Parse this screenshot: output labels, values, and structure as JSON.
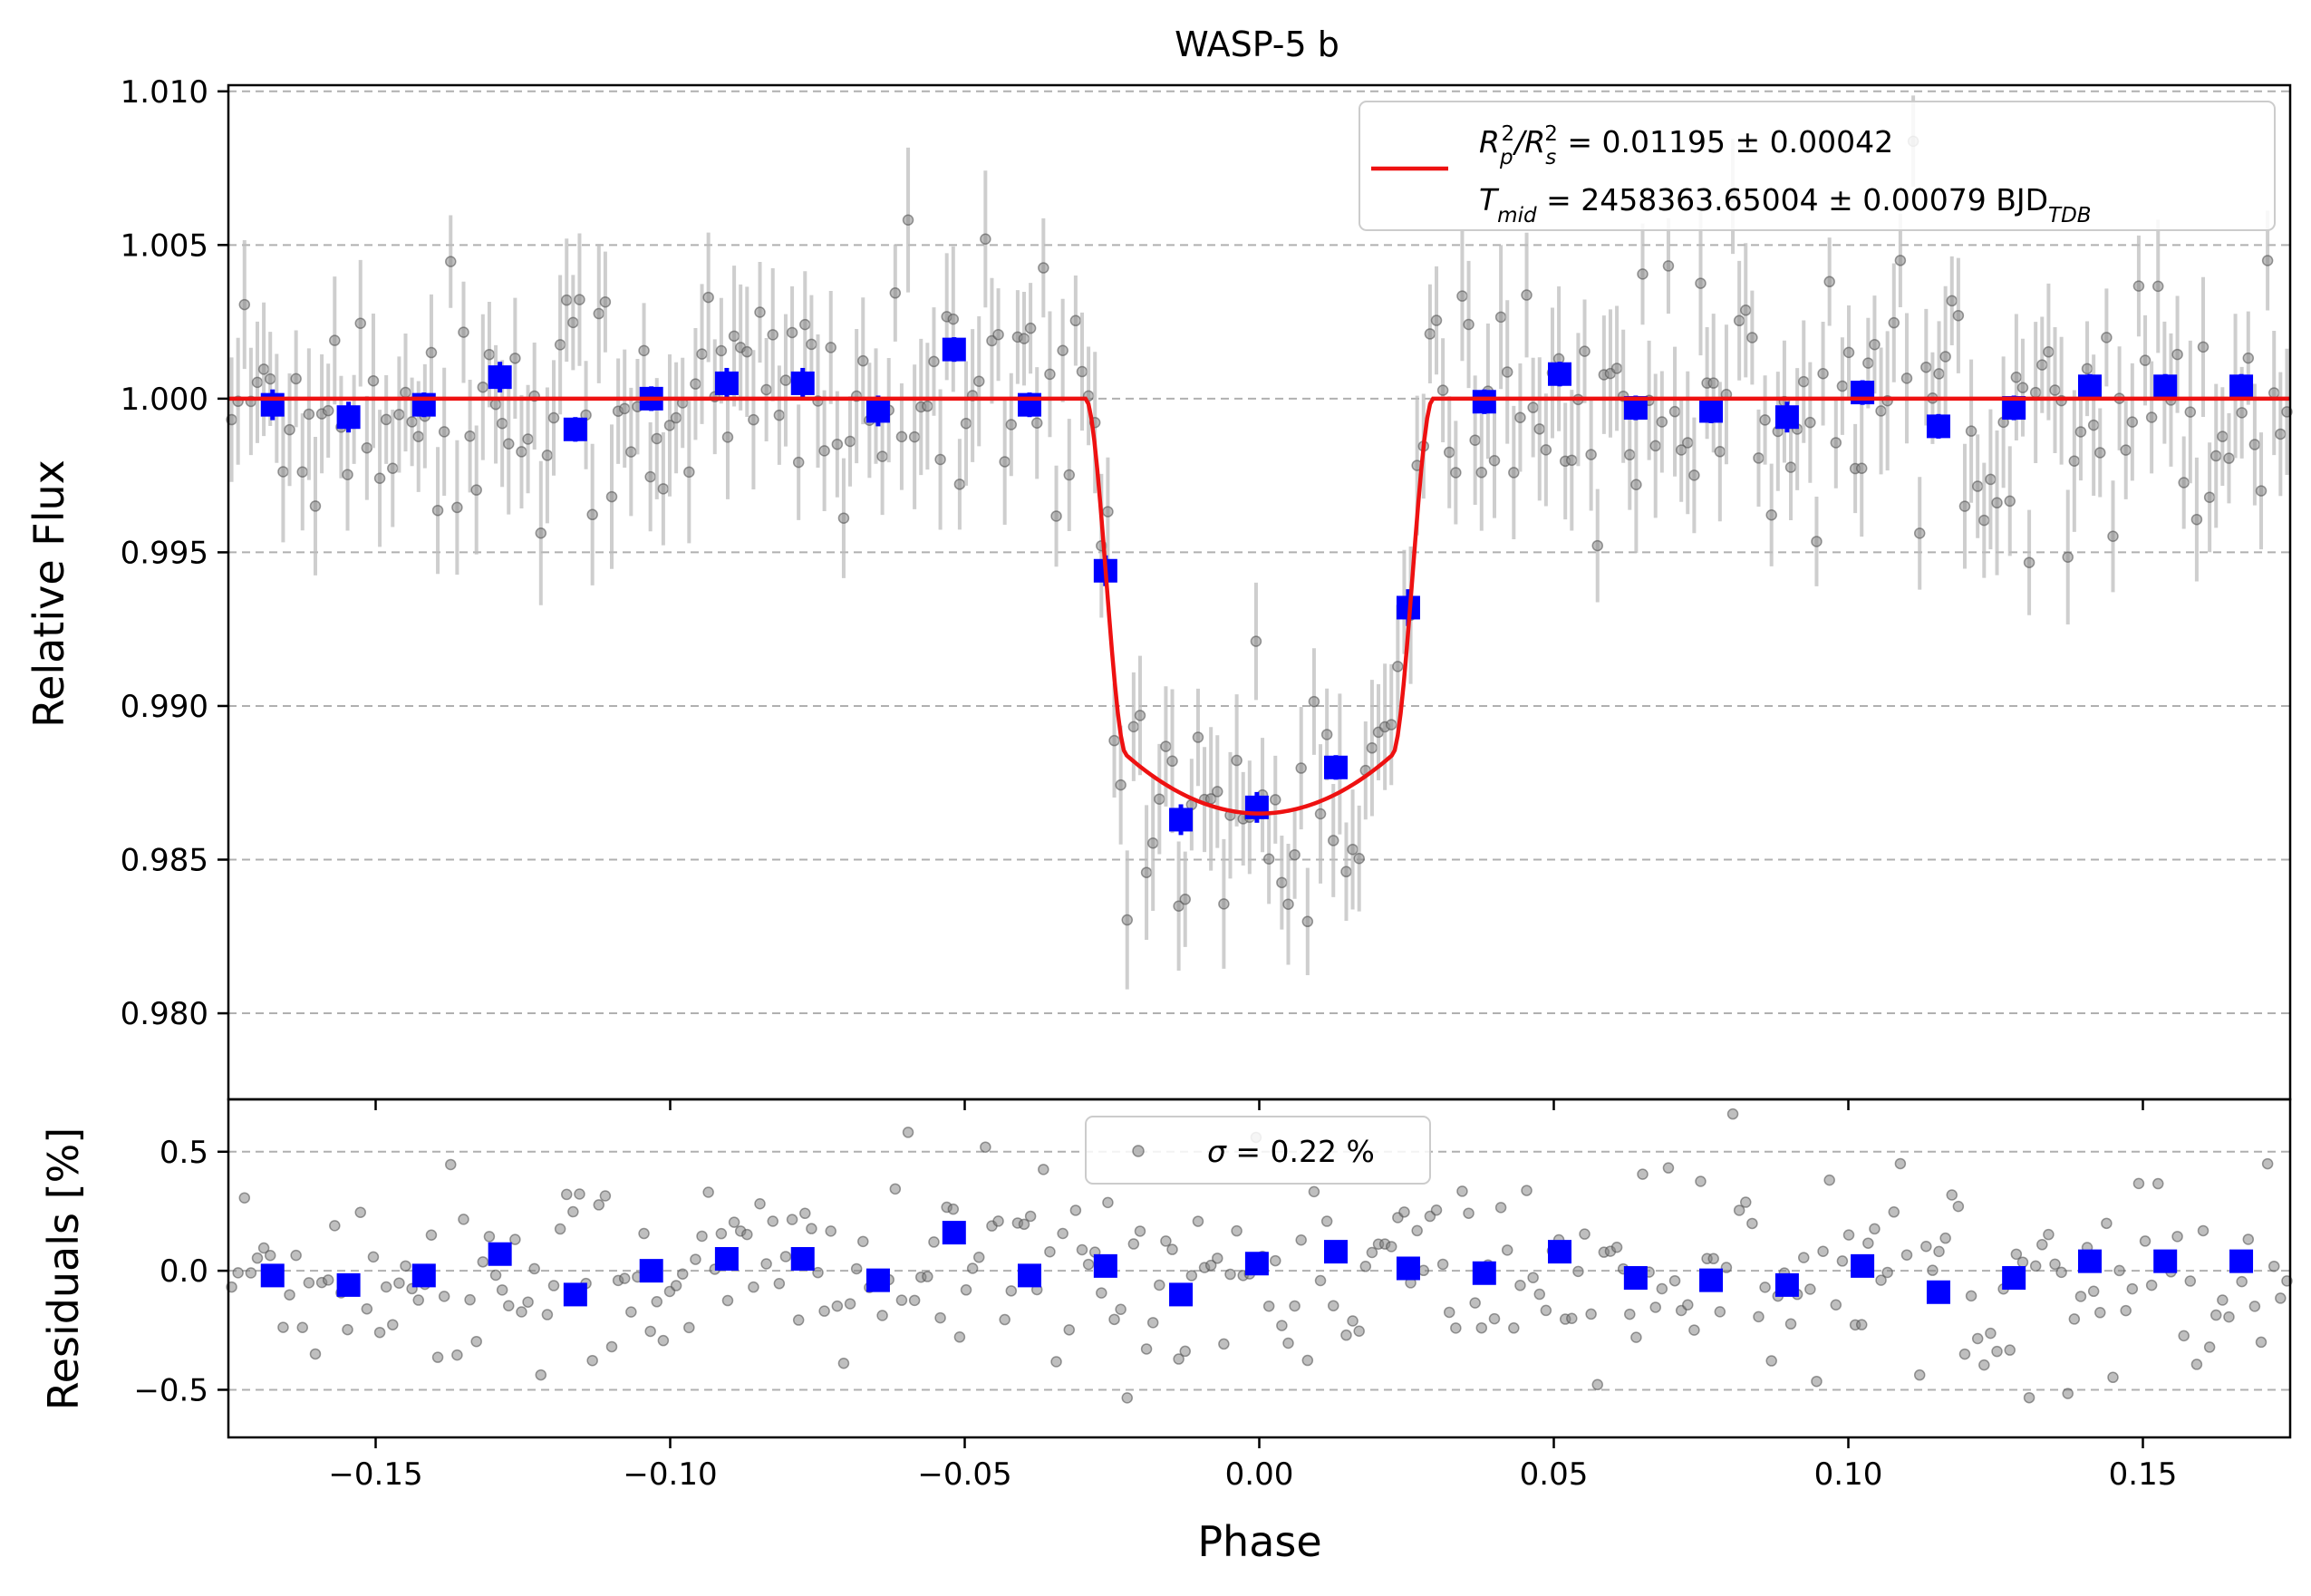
{
  "chart_data": [
    {
      "type": "scatter",
      "panel": "main",
      "title": "WASP-5 b",
      "xlabel": "",
      "ylabel": "Relative Flux",
      "xlim": [
        -0.175,
        0.175
      ],
      "ylim": [
        0.9772,
        1.0102
      ],
      "yticks": [
        {
          "value": 1.01,
          "label": "1.010"
        },
        {
          "value": 1.005,
          "label": "1.005"
        },
        {
          "value": 1.0,
          "label": "1.000"
        },
        {
          "value": 0.995,
          "label": "0.995"
        },
        {
          "value": 0.99,
          "label": "0.990"
        },
        {
          "value": 0.985,
          "label": "0.985"
        },
        {
          "value": 0.98,
          "label": "0.980"
        }
      ],
      "grid": "horizontal dashed",
      "legend_position": "upper-right",
      "legend": {
        "line1": {
          "prefix": "R",
          "sub1": "p",
          "sup1": "2",
          "slash": "/R",
          "sub2": "s",
          "sup2": "2",
          "value": " = 0.01195 ± 0.00042"
        },
        "line2": {
          "prefix": "T",
          "sub1": "mid",
          "value": " = 2458363.65004 ± 0.00079 BJD",
          "sub2": "TDB"
        }
      },
      "model": {
        "name": "transit model",
        "color": "#ee1111",
        "baseline": 1.0,
        "depth": 0.0135,
        "t1": 0.0295,
        "t2": 0.0225
      },
      "binned": {
        "color": "#0000ff",
        "x": [
          -0.1675,
          -0.1546,
          -0.1418,
          -0.1289,
          -0.1161,
          -0.1032,
          -0.0904,
          -0.0775,
          -0.0647,
          -0.0518,
          -0.039,
          -0.0261,
          -0.0133,
          -0.0004,
          0.013,
          0.0253,
          0.0382,
          0.051,
          0.0639,
          0.0767,
          0.0896,
          0.1024,
          0.1153,
          0.1281,
          0.141,
          0.1538,
          0.1667
        ],
        "y": [
          0.9998,
          0.9994,
          0.9998,
          1.0007,
          0.999,
          1.0,
          1.0005,
          1.0005,
          0.9996,
          1.0016,
          0.9998,
          0.9944,
          0.9863,
          0.9867,
          0.988,
          0.9932,
          0.9999,
          1.0008,
          0.9997,
          0.9996,
          0.9994,
          1.0002,
          0.9991,
          0.9997,
          1.0004,
          1.0004,
          1.0004
        ],
        "err": [
          0.0005,
          0.0005,
          0.0004,
          0.0005,
          0.0004,
          0.0004,
          0.0005,
          0.0005,
          0.0005,
          0.0004,
          0.0004,
          0.0005,
          0.0005,
          0.0005,
          0.0004,
          0.0006,
          0.0004,
          0.0004,
          0.0004,
          0.0004,
          0.0005,
          0.0004,
          0.0004,
          0.0004,
          0.0004,
          0.0004,
          0.0004
        ]
      },
      "raw": {
        "color": "#808080",
        "n_points": 320,
        "scatter": 0.0022,
        "err": 0.0019
      }
    },
    {
      "type": "scatter",
      "panel": "residuals",
      "xlabel": "Phase",
      "ylabel": "Residuals [%]",
      "xlim": [
        -0.175,
        0.175
      ],
      "ylim": [
        -0.7,
        0.72
      ],
      "xticks": [
        {
          "value": -0.15,
          "label": "−0.15"
        },
        {
          "value": -0.1,
          "label": "−0.10"
        },
        {
          "value": -0.05,
          "label": "−0.05"
        },
        {
          "value": 0.0,
          "label": "0.00"
        },
        {
          "value": 0.05,
          "label": "0.05"
        },
        {
          "value": 0.1,
          "label": "0.10"
        },
        {
          "value": 0.15,
          "label": "0.15"
        }
      ],
      "yticks": [
        {
          "value": 0.5,
          "label": "0.5"
        },
        {
          "value": 0.0,
          "label": "0.0"
        },
        {
          "value": -0.5,
          "label": "−0.5"
        }
      ],
      "grid": "horizontal dashed",
      "legend_position": "upper-center",
      "legend": {
        "symbol": "σ",
        "value": " = 0.22 %"
      },
      "binned": {
        "color": "#0000ff",
        "y": [
          -0.02,
          -0.06,
          -0.02,
          0.07,
          -0.1,
          0.0,
          0.05,
          0.05,
          -0.04,
          0.16,
          -0.02,
          0.02,
          -0.1,
          0.03,
          0.08,
          0.01,
          -0.01,
          0.08,
          -0.03,
          -0.04,
          -0.06,
          0.02,
          -0.09,
          -0.03,
          0.04,
          0.04,
          0.04
        ]
      }
    }
  ]
}
